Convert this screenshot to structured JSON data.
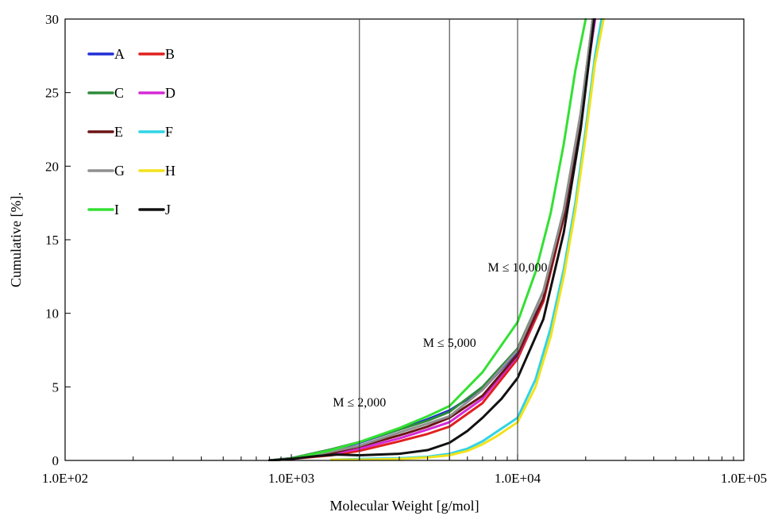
{
  "chart_data": {
    "type": "line",
    "title": "",
    "xlabel": "Molecular Weight [g/mol]",
    "ylabel": "Cumulative [%].",
    "x_scale": "log",
    "xlim": [
      100,
      100000
    ],
    "ylim": [
      0,
      30
    ],
    "x_ticks": [
      100,
      1000,
      10000,
      100000
    ],
    "x_tick_labels": [
      "1.0E+02",
      "1.0E+03",
      "1.0E+04",
      "1.0E+05"
    ],
    "y_ticks": [
      0,
      5,
      10,
      15,
      20,
      25,
      30
    ],
    "y_tick_labels": [
      "0",
      "5",
      "10",
      "15",
      "20",
      "25",
      "30"
    ],
    "grid": false,
    "legend_position": "top-left",
    "reference_lines": [
      {
        "x": 2000,
        "label": "M ≤ 2,000"
      },
      {
        "x": 5000,
        "label": "M ≤ 5,000"
      },
      {
        "x": 10000,
        "label": "M ≤ 10,000"
      }
    ],
    "series": [
      {
        "name": "A",
        "color": "#1f2fd6",
        "x": [
          800,
          1000,
          1500,
          2000,
          3000,
          4000,
          5000,
          7000,
          10000,
          13000,
          16000,
          19000,
          21500
        ],
        "y": [
          0,
          0.15,
          0.7,
          1.2,
          2.1,
          2.8,
          3.4,
          4.8,
          7.4,
          11.0,
          16.5,
          23.0,
          30
        ]
      },
      {
        "name": "B",
        "color": "#e0201e",
        "x": [
          800,
          1000,
          1500,
          2000,
          3000,
          4000,
          5000,
          7000,
          10000,
          13000,
          16000,
          19000,
          22000
        ],
        "y": [
          0,
          0.1,
          0.35,
          0.65,
          1.3,
          1.8,
          2.3,
          3.9,
          6.9,
          10.8,
          16.5,
          23.5,
          30
        ]
      },
      {
        "name": "C",
        "color": "#2e8b3a",
        "x": [
          800,
          1000,
          1500,
          2000,
          3000,
          4000,
          5000,
          7000,
          10000,
          13000,
          16000,
          19000,
          21500
        ],
        "y": [
          0,
          0.15,
          0.75,
          1.25,
          2.1,
          2.7,
          3.3,
          5.0,
          7.6,
          11.5,
          17.0,
          23.5,
          30
        ]
      },
      {
        "name": "D",
        "color": "#d62ad6",
        "x": [
          800,
          1000,
          1500,
          2000,
          3000,
          4000,
          5000,
          7000,
          10000,
          13000,
          16000,
          19000,
          22000
        ],
        "y": [
          0,
          0.1,
          0.45,
          0.8,
          1.5,
          2.1,
          2.6,
          4.2,
          7.1,
          11.0,
          16.6,
          23.5,
          30
        ]
      },
      {
        "name": "E",
        "color": "#6b1515",
        "x": [
          800,
          1000,
          1500,
          2000,
          3000,
          4000,
          5000,
          7000,
          10000,
          13000,
          16000,
          19000,
          21500
        ],
        "y": [
          0,
          0.1,
          0.5,
          0.95,
          1.7,
          2.3,
          2.9,
          4.4,
          7.2,
          11.0,
          16.6,
          23.4,
          30
        ]
      },
      {
        "name": "F",
        "color": "#2fd4e6",
        "x": [
          1500,
          2000,
          3000,
          4000,
          5000,
          6000,
          7000,
          8000,
          10000,
          12000,
          14000,
          16000,
          18000,
          20000,
          22000,
          23500
        ],
        "y": [
          0.05,
          0.1,
          0.15,
          0.25,
          0.45,
          0.8,
          1.3,
          1.9,
          2.9,
          5.5,
          9.0,
          13.0,
          17.5,
          22.5,
          27.5,
          30
        ]
      },
      {
        "name": "G",
        "color": "#8f8f8f",
        "x": [
          800,
          1000,
          1500,
          2000,
          3000,
          4000,
          5000,
          7000,
          10000,
          13000,
          16000,
          19000,
          21500
        ],
        "y": [
          0,
          0.1,
          0.6,
          1.0,
          1.9,
          2.5,
          3.0,
          4.8,
          7.5,
          11.5,
          17.0,
          23.6,
          30
        ]
      },
      {
        "name": "H",
        "color": "#f2e21c",
        "x": [
          1500,
          2000,
          3000,
          4000,
          5000,
          6000,
          7000,
          8000,
          10000,
          12000,
          14000,
          16000,
          18000,
          20000,
          22000,
          24000
        ],
        "y": [
          0.05,
          0.05,
          0.1,
          0.2,
          0.35,
          0.65,
          1.1,
          1.6,
          2.6,
          5.0,
          8.4,
          12.5,
          17.0,
          22.0,
          27.0,
          30
        ]
      },
      {
        "name": "I",
        "color": "#33e033",
        "x": [
          800,
          1000,
          1500,
          2000,
          3000,
          4000,
          5000,
          7000,
          10000,
          12000,
          14000,
          16000,
          18000,
          20000
        ],
        "y": [
          0,
          0.1,
          0.7,
          1.25,
          2.2,
          3.0,
          3.7,
          6.0,
          9.4,
          12.8,
          16.8,
          21.5,
          26.5,
          30
        ]
      },
      {
        "name": "J",
        "color": "#111111",
        "x": [
          800,
          1000,
          1300,
          1600,
          2000,
          3000,
          4000,
          5000,
          6000,
          7000,
          8500,
          10000,
          13000,
          16000,
          19000,
          21800
        ],
        "y": [
          0,
          0.1,
          0.3,
          0.4,
          0.35,
          0.45,
          0.7,
          1.2,
          2.0,
          2.9,
          4.2,
          5.6,
          9.6,
          15.5,
          22.5,
          30
        ]
      }
    ]
  }
}
